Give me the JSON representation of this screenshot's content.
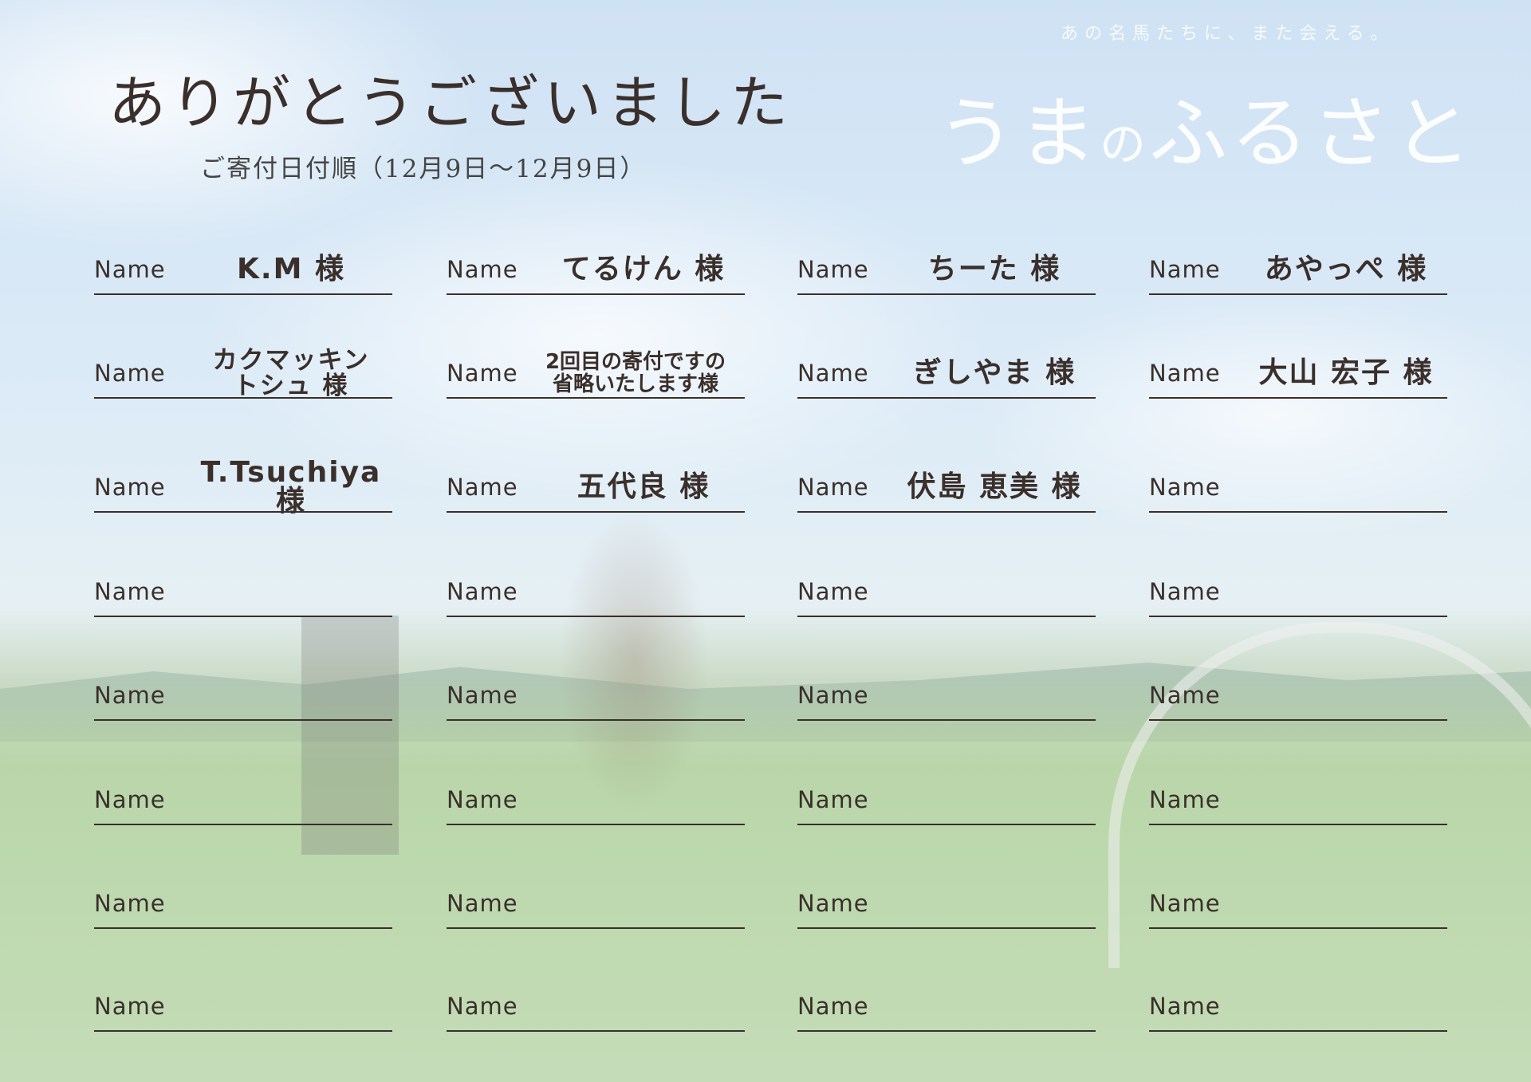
{
  "header": {
    "title": "ありがとうございました",
    "subtitle": "ご寄付日付順（12月9日～12月9日）"
  },
  "logo": {
    "tagline": "あの名馬たちに、また会える。",
    "name_part1": "うま",
    "name_part2": "の",
    "name_part3": "ふるさと"
  },
  "field_label": "Name",
  "donors": [
    "K.M 様",
    "てるけん 様",
    "ちーた 様",
    "あやっぺ 様",
    "カクマッキン\nトシュ 様",
    "2回目の寄付ですの\n省略いたします様",
    "ぎしやま 様",
    "大山 宏子 様",
    "T.Tsuchiya 様",
    "五代良 様",
    "伏島 恵美 様",
    "",
    "",
    "",
    "",
    "",
    "",
    "",
    "",
    "",
    "",
    "",
    "",
    "",
    "",
    "",
    "",
    "",
    "",
    "",
    "",
    ""
  ]
}
